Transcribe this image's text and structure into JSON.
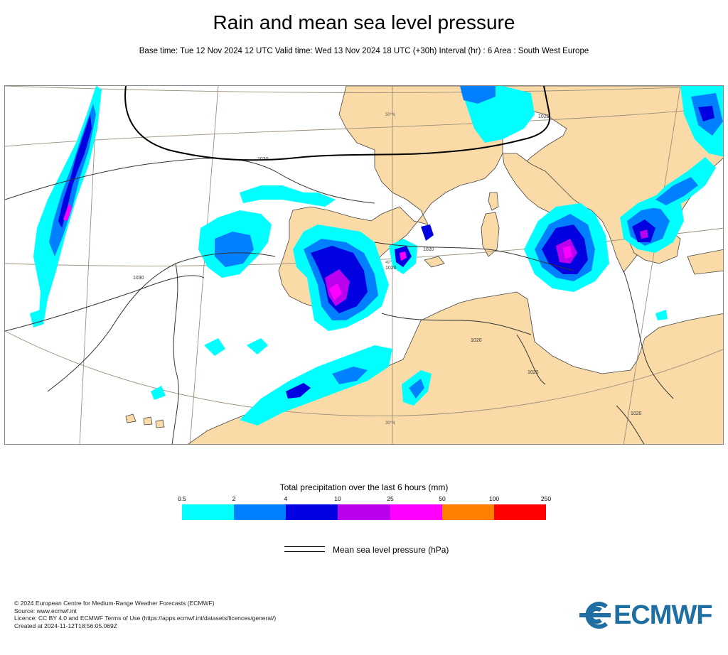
{
  "title": "Rain and mean sea level pressure",
  "subtitle": "Base time: Tue 12 Nov 2024 12 UTC Valid time: Wed 13 Nov 2024 18 UTC (+30h) Interval (hr) : 6 Area : South West Europe",
  "map": {
    "land_color": "#fadba8",
    "sea_color": "#ffffff",
    "grid_labels": [
      "50°N",
      "40°N",
      "30°N"
    ],
    "isobar_labels": [
      "1030",
      "1030",
      "1020",
      "1020",
      "1020",
      "1020",
      "1020",
      "1020"
    ]
  },
  "legend": {
    "title": "Total precipitation over the last 6 hours (mm)",
    "ticks": [
      "0.5",
      "2",
      "4",
      "10",
      "25",
      "50",
      "100",
      "250"
    ],
    "colors": [
      "#00ffff",
      "#0080ff",
      "#0000e0",
      "#bb00ee",
      "#ff00ff",
      "#ff8000",
      "#ff0000"
    ]
  },
  "mslp_legend": "Mean sea level pressure (hPa)",
  "footer": [
    "© 2024 European Centre for Medium-Range Weather Forecasts (ECMWF)",
    "Source: www.ecmwf.int",
    "Licence: CC BY 4.0 and ECMWF Terms of Use (https://apps.ecmwf.int/datasets/licences/general/)",
    "Created at 2024-11-12T18:56:05.069Z"
  ],
  "logo": "ECMWF"
}
